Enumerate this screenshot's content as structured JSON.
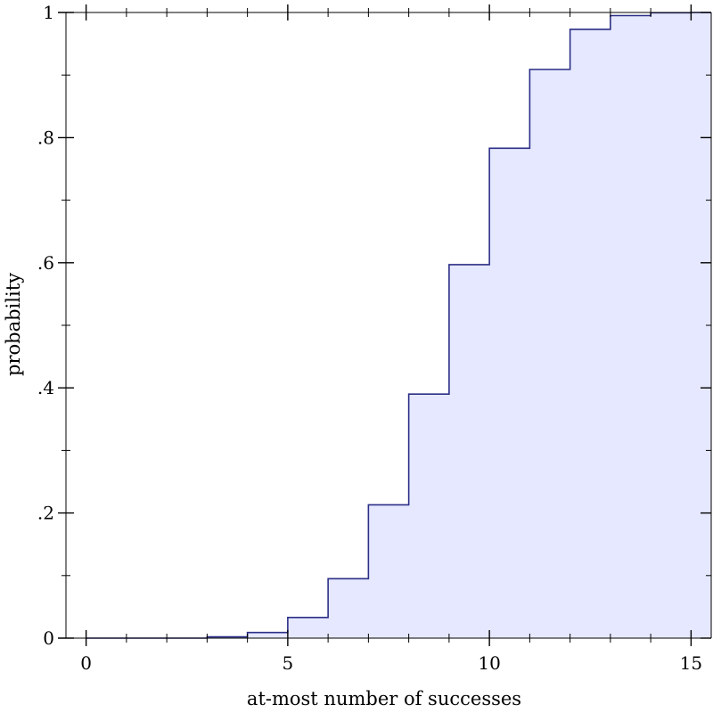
{
  "chart_data": {
    "type": "line",
    "step": "post",
    "fill": "area",
    "xlabel": "at-most number of successes",
    "ylabel": "probability",
    "xlim": [
      -0.5,
      15.5
    ],
    "ylim": [
      0,
      1
    ],
    "x_ticks": [
      {
        "value": 0,
        "label": "0"
      },
      {
        "value": 5,
        "label": "5"
      },
      {
        "value": 10,
        "label": "10"
      },
      {
        "value": 15,
        "label": "15"
      }
    ],
    "x_minor_ticks": [
      1,
      2,
      3,
      4,
      6,
      7,
      8,
      9,
      11,
      12,
      13,
      14
    ],
    "y_ticks": [
      {
        "value": 0,
        "label": "0"
      },
      {
        "value": 0.2,
        "label": ".2"
      },
      {
        "value": 0.4,
        "label": ".4"
      },
      {
        "value": 0.6,
        "label": ".6"
      },
      {
        "value": 0.8,
        "label": ".8"
      },
      {
        "value": 1,
        "label": "1"
      }
    ],
    "y_minor_ticks": [
      0.1,
      0.3,
      0.5,
      0.7,
      0.9
    ],
    "series": [
      {
        "x": [
          0,
          1,
          2,
          3,
          4,
          5,
          6,
          7,
          8,
          9,
          10,
          11,
          12,
          13,
          14,
          15
        ],
        "values": [
          0.0,
          0.0,
          0.0,
          0.002,
          0.009,
          0.033,
          0.095,
          0.213,
          0.39,
          0.597,
          0.783,
          0.909,
          0.973,
          0.995,
          0.9995,
          1.0
        ]
      }
    ],
    "colors": {
      "line": "#2b2f86",
      "fill": "#e6e8ff",
      "axis": "#000000"
    }
  }
}
